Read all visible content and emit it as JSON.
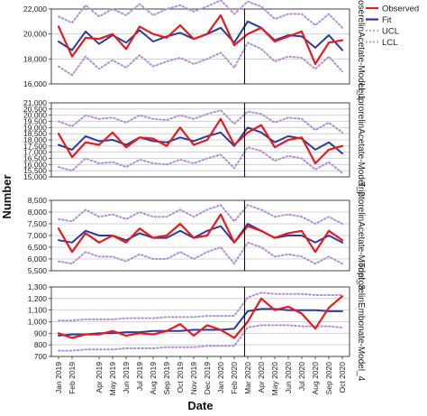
{
  "chart_data": {
    "type": "line",
    "xlabel": "Date",
    "ylabel": "Number",
    "intervention_after_index": 14,
    "x": [
      "Jan 2019",
      "Feb 2019",
      "Mar 2019",
      "Apr 2019",
      "May 2019",
      "Jun 2019",
      "Jul 2019",
      "Aug 2019",
      "Sep 2019",
      "Oct 2019",
      "Nov 2019",
      "Dec 2019",
      "Jan 2020",
      "Feb 2020",
      "Mar 2020",
      "Apr 2020",
      "May 2020",
      "Jun 2020",
      "Jul 2020",
      "Aug 2020",
      "Sep 2020",
      "Oct 2020"
    ],
    "x_tick_labels": [
      "Jan 2019",
      "Feb 2019",
      "Apr 2019",
      "May 2019",
      "Jun 2019",
      "Jul 2019",
      "Aug 2019",
      "Sep 2019",
      "Oct 2019",
      "Nov 2019",
      "Dec 2019",
      "Jan 2020",
      "Feb 2020",
      "Mar 2020",
      "Apr 2020",
      "May 2020",
      "Jun 2020",
      "Jul 2020",
      "Aug 2020",
      "Sep 2020",
      "Oct 2020"
    ],
    "x_tick_positions": [
      0,
      1,
      3,
      4,
      5,
      6,
      7,
      8,
      9,
      10,
      11,
      12,
      13,
      14,
      15,
      16,
      17,
      18,
      19,
      20,
      21
    ],
    "legend": {
      "placement": "top-right",
      "entries": [
        {
          "name": "Observed",
          "color": "#e8191f",
          "style": "solid"
        },
        {
          "name": "Fit",
          "color": "#2a3d9c",
          "style": "solid"
        },
        {
          "name": "UCL",
          "color": "#b38fd6",
          "style": "dotted"
        },
        {
          "name": "LCL",
          "color": "#b38fd6",
          "style": "dotted"
        }
      ]
    },
    "grid": "horizontal",
    "panels": [
      {
        "label": "GoserelinAcetate-Model_1",
        "ylim": [
          16000,
          22000
        ],
        "yticks": [
          16000,
          18000,
          20000,
          22000
        ],
        "ytick_labels": [
          "16,000",
          "18,000",
          "20,000",
          "22,000"
        ],
        "series": [
          {
            "name": "Observed",
            "values": [
              20600,
              18200,
              19700,
              19600,
              20000,
              18800,
              20600,
              20000,
              19700,
              20700,
              19600,
              20000,
              21500,
              19100,
              20000,
              20500,
              19400,
              19800,
              20200,
              17600,
              19300,
              19500
            ]
          },
          {
            "name": "Fit",
            "values": [
              19400,
              18700,
              20200,
              19200,
              19900,
              19300,
              20300,
              19400,
              19800,
              20100,
              19600,
              20000,
              20500,
              19300,
              21000,
              20500,
              19500,
              19900,
              19800,
              18900,
              19900,
              18700
            ]
          },
          {
            "name": "UCL",
            "values": [
              21400,
              20900,
              22300,
              21400,
              22000,
              21500,
              22400,
              21500,
              22000,
              22300,
              21800,
              22200,
              22700,
              21600,
              22600,
              22200,
              21200,
              21600,
              21600,
              20700,
              21600,
              20500
            ]
          },
          {
            "name": "LCL",
            "values": [
              17400,
              16700,
              18200,
              17200,
              17900,
              17300,
              18300,
              17400,
              17800,
              18100,
              17600,
              18000,
              18500,
              17300,
              19300,
              18800,
              17800,
              18200,
              18100,
              17200,
              18200,
              17000
            ]
          }
        ]
      },
      {
        "label": "LeuprorelinAcetate-Model_2",
        "ylim": [
          15000,
          21000
        ],
        "yticks": [
          15000,
          15500,
          16000,
          16500,
          17000,
          17500,
          18000,
          18500,
          19000,
          19500,
          20000,
          20500,
          21000
        ],
        "ytick_labels": [
          "15,000",
          "15,500",
          "16,000",
          "16,500",
          "17,000",
          "17,500",
          "18,000",
          "18,500",
          "19,000",
          "19,500",
          "20,000",
          "20,500",
          "21,000"
        ],
        "series": [
          {
            "name": "Observed",
            "values": [
              18500,
              16600,
              17800,
              17600,
              18600,
              17400,
              18200,
              18100,
              17500,
              19000,
              17600,
              18000,
              19700,
              17600,
              18600,
              19200,
              17400,
              18000,
              18200,
              16100,
              17200,
              17500
            ]
          },
          {
            "name": "Fit",
            "values": [
              17600,
              17200,
              18300,
              17900,
              18000,
              17600,
              18200,
              17900,
              17800,
              18200,
              17900,
              18300,
              18600,
              17500,
              19000,
              18600,
              17800,
              18300,
              18100,
              17200,
              17800,
              16900
            ]
          },
          {
            "name": "UCL",
            "values": [
              19500,
              19100,
              20000,
              19700,
              19800,
              19400,
              20000,
              19700,
              19600,
              20000,
              19700,
              20100,
              20400,
              19300,
              20300,
              20100,
              19400,
              19800,
              19700,
              18800,
              19400,
              18600
            ]
          },
          {
            "name": "LCL",
            "values": [
              15800,
              15500,
              16500,
              16100,
              16200,
              15800,
              16400,
              16100,
              16000,
              16400,
              16100,
              16500,
              16800,
              15700,
              17400,
              17100,
              16300,
              16700,
              16500,
              15600,
              16200,
              15300
            ]
          }
        ]
      },
      {
        "label": "TriptorelinAcetate-Model_3",
        "ylim": [
          5500,
          8500
        ],
        "yticks": [
          5500,
          6000,
          6500,
          7000,
          7500,
          8000,
          8500
        ],
        "ytick_labels": [
          "5,500",
          "6,000",
          "6,500",
          "7,000",
          "7,500",
          "8,000",
          "8,500"
        ],
        "series": [
          {
            "name": "Observed",
            "values": [
              7300,
              6300,
              7100,
              6700,
              7000,
              6700,
              7300,
              6900,
              7000,
              7500,
              6900,
              7000,
              7900,
              6700,
              7400,
              7200,
              6900,
              7100,
              7200,
              6300,
              7200,
              6800
            ]
          },
          {
            "name": "Fit",
            "values": [
              6800,
              6700,
              7200,
              7000,
              7000,
              6800,
              7100,
              6900,
              6900,
              7200,
              6900,
              7200,
              7400,
              6700,
              7500,
              7200,
              6900,
              7000,
              7000,
              6700,
              7000,
              6700
            ]
          },
          {
            "name": "UCL",
            "values": [
              7700,
              7600,
              8100,
              7800,
              7900,
              7700,
              8000,
              7800,
              7800,
              8100,
              7800,
              8100,
              8300,
              7600,
              8300,
              8100,
              7800,
              7900,
              7800,
              7500,
              7800,
              7500
            ]
          },
          {
            "name": "LCL",
            "values": [
              5900,
              5800,
              6300,
              6100,
              6100,
              5900,
              6200,
              6000,
              6000,
              6300,
              6000,
              6300,
              6500,
              5800,
              6700,
              6500,
              6100,
              6200,
              6100,
              5800,
              6100,
              5800
            ]
          }
        ]
      },
      {
        "label": "TriptorelinEmbonate-Model_4",
        "ylim": [
          700,
          1300
        ],
        "yticks": [
          700,
          800,
          900,
          1000,
          1100,
          1200,
          1300
        ],
        "ytick_labels": [
          "700",
          "800",
          "900",
          "1,000",
          "1,100",
          "1,200",
          "1,300"
        ],
        "series": [
          {
            "name": "Observed",
            "values": [
              900,
              860,
              890,
              890,
              920,
              880,
              900,
              890,
              920,
              980,
              880,
              970,
              930,
              860,
              1000,
              1200,
              1100,
              1130,
              1070,
              940,
              1120,
              1220
            ]
          },
          {
            "name": "Fit",
            "values": [
              880,
              890,
              890,
              900,
              900,
              910,
              910,
              920,
              920,
              920,
              930,
              930,
              930,
              940,
              1090,
              1110,
              1110,
              1100,
              1100,
              1100,
              1090,
              1090
            ]
          },
          {
            "name": "UCL",
            "values": [
              1010,
              1010,
              1020,
              1020,
              1020,
              1030,
              1030,
              1030,
              1040,
              1040,
              1040,
              1050,
              1050,
              1050,
              1210,
              1250,
              1240,
              1240,
              1240,
              1230,
              1230,
              1230
            ]
          },
          {
            "name": "LCL",
            "values": [
              750,
              750,
              760,
              760,
              760,
              770,
              770,
              770,
              780,
              780,
              780,
              790,
              790,
              790,
              950,
              970,
              970,
              970,
              960,
              960,
              960,
              950
            ]
          }
        ]
      }
    ]
  }
}
